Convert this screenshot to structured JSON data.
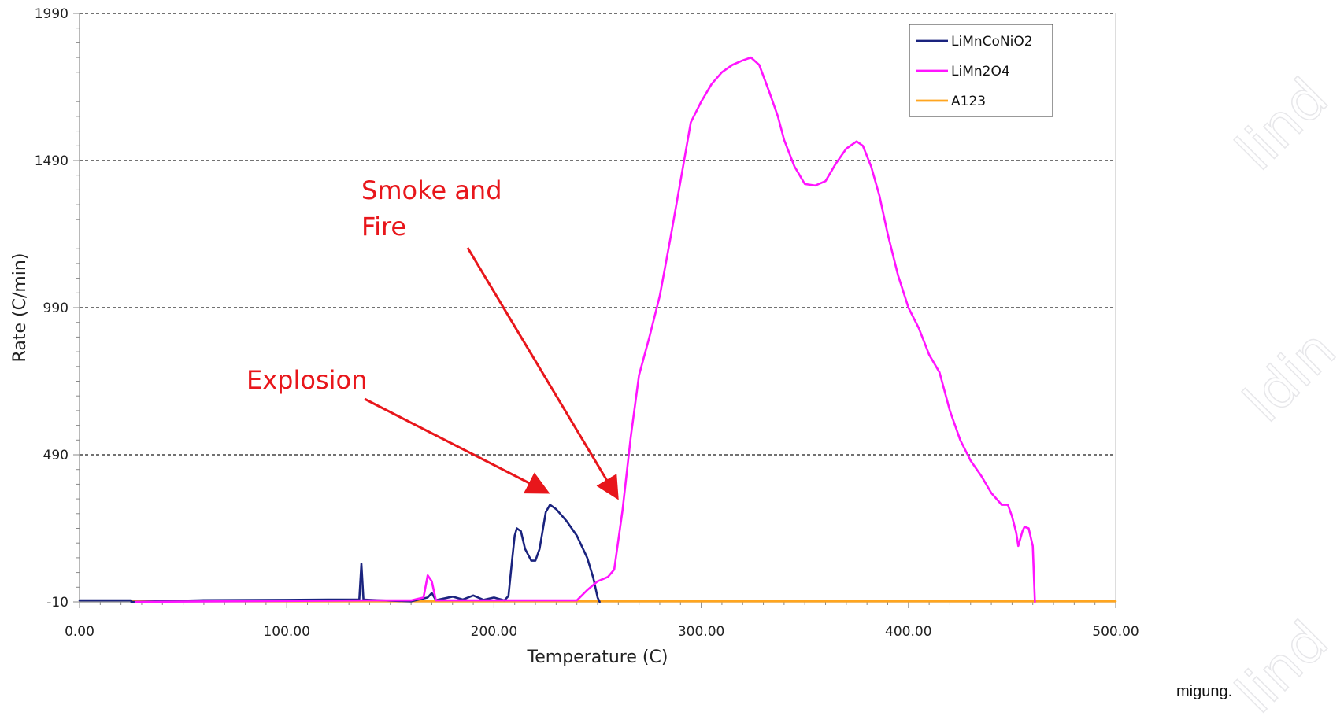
{
  "chart_data": {
    "type": "line",
    "title": "",
    "xlabel": "Temperature (C)",
    "ylabel": "Rate (C/min)",
    "xlim": [
      0,
      500
    ],
    "ylim": [
      -10,
      1990
    ],
    "x_ticks": [
      0,
      100,
      200,
      300,
      400,
      500
    ],
    "x_tick_labels": [
      "0.00",
      "100.00",
      "200.00",
      "300.00",
      "400.00",
      "500.00"
    ],
    "y_ticks": [
      -10,
      490,
      990,
      1490,
      1990
    ],
    "y_tick_labels": [
      "-10",
      "490",
      "990",
      "1490",
      "1990"
    ],
    "grid": "horizontal dashed",
    "legend_position": "top-right",
    "series": [
      {
        "name": "LiMnCoNiO2",
        "color": "#1a237e",
        "points": [
          [
            0,
            -5
          ],
          [
            25,
            -5
          ],
          [
            25,
            -10
          ],
          [
            60,
            -4
          ],
          [
            100,
            -3
          ],
          [
            120,
            -2
          ],
          [
            135,
            -2
          ],
          [
            136,
            120
          ],
          [
            137,
            -2
          ],
          [
            150,
            -6
          ],
          [
            160,
            -8
          ],
          [
            168,
            5
          ],
          [
            170,
            20
          ],
          [
            172,
            -4
          ],
          [
            180,
            8
          ],
          [
            185,
            -2
          ],
          [
            190,
            12
          ],
          [
            195,
            -3
          ],
          [
            200,
            5
          ],
          [
            205,
            -5
          ],
          [
            207,
            10
          ],
          [
            209,
            150
          ],
          [
            210,
            215
          ],
          [
            211,
            240
          ],
          [
            213,
            230
          ],
          [
            215,
            170
          ],
          [
            218,
            130
          ],
          [
            220,
            130
          ],
          [
            222,
            170
          ],
          [
            225,
            295
          ],
          [
            227,
            320
          ],
          [
            230,
            305
          ],
          [
            235,
            265
          ],
          [
            240,
            215
          ],
          [
            245,
            140
          ],
          [
            248,
            70
          ],
          [
            250,
            5
          ],
          [
            251,
            -10
          ]
        ]
      },
      {
        "name": "LiMn2O4",
        "color": "#ff14ff",
        "points": [
          [
            27,
            -10
          ],
          [
            140,
            -5
          ],
          [
            160,
            -5
          ],
          [
            166,
            5
          ],
          [
            168,
            80
          ],
          [
            170,
            60
          ],
          [
            172,
            -5
          ],
          [
            240,
            -5
          ],
          [
            245,
            30
          ],
          [
            250,
            60
          ],
          [
            255,
            75
          ],
          [
            258,
            100
          ],
          [
            262,
            300
          ],
          [
            266,
            550
          ],
          [
            270,
            760
          ],
          [
            275,
            890
          ],
          [
            280,
            1030
          ],
          [
            285,
            1220
          ],
          [
            290,
            1420
          ],
          [
            295,
            1620
          ],
          [
            300,
            1690
          ],
          [
            305,
            1750
          ],
          [
            310,
            1790
          ],
          [
            315,
            1815
          ],
          [
            320,
            1830
          ],
          [
            324,
            1840
          ],
          [
            328,
            1815
          ],
          [
            333,
            1720
          ],
          [
            337,
            1640
          ],
          [
            340,
            1560
          ],
          [
            345,
            1470
          ],
          [
            350,
            1410
          ],
          [
            355,
            1405
          ],
          [
            360,
            1420
          ],
          [
            365,
            1480
          ],
          [
            370,
            1530
          ],
          [
            375,
            1555
          ],
          [
            378,
            1540
          ],
          [
            382,
            1470
          ],
          [
            386,
            1370
          ],
          [
            390,
            1240
          ],
          [
            395,
            1100
          ],
          [
            400,
            990
          ],
          [
            405,
            920
          ],
          [
            410,
            830
          ],
          [
            415,
            770
          ],
          [
            420,
            640
          ],
          [
            425,
            540
          ],
          [
            430,
            470
          ],
          [
            435,
            420
          ],
          [
            440,
            360
          ],
          [
            445,
            320
          ],
          [
            448,
            320
          ],
          [
            450,
            280
          ],
          [
            452,
            225
          ],
          [
            453,
            180
          ],
          [
            455,
            230
          ],
          [
            456,
            245
          ],
          [
            458,
            240
          ],
          [
            460,
            180
          ],
          [
            461,
            -10
          ]
        ]
      },
      {
        "name": "A123",
        "color": "#ffa51f",
        "points": [
          [
            25,
            -8
          ],
          [
            500,
            -8
          ]
        ]
      }
    ],
    "annotations": [
      {
        "lines": [
          "Smoke and",
          "Fire"
        ],
        "color": "#e8161b",
        "arrow_to": [
          259,
          350
        ]
      },
      {
        "lines": [
          "Explosion"
        ],
        "color": "#e8161b",
        "arrow_to": [
          225,
          365
        ]
      }
    ]
  },
  "side_text": "migung.",
  "watermark": [
    "lind",
    "ldin",
    "lind"
  ]
}
